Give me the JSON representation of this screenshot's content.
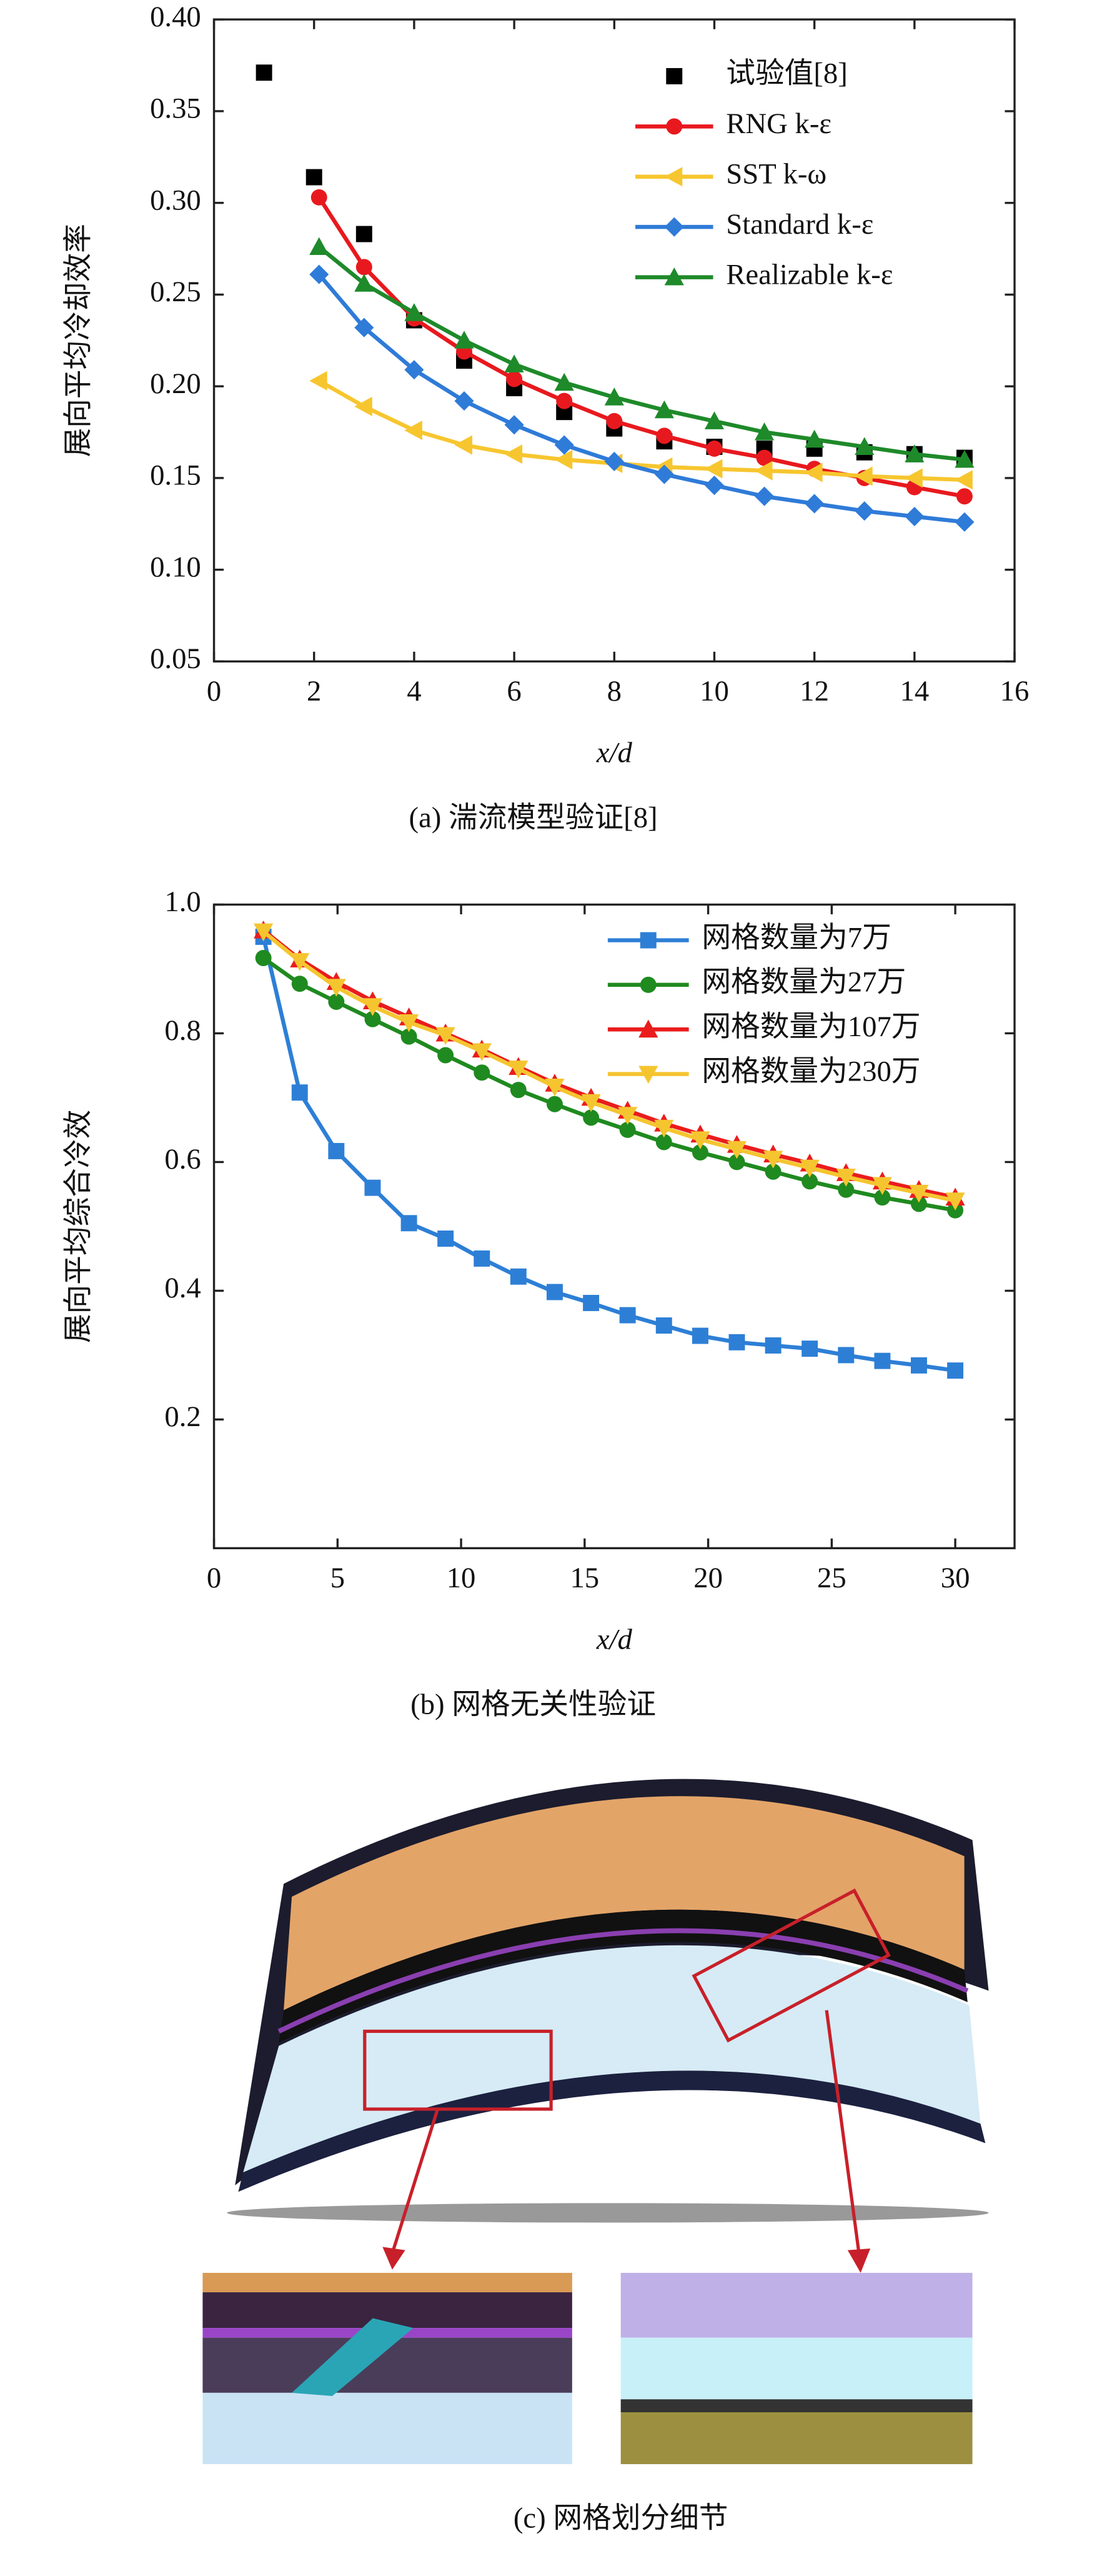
{
  "chart_data": [
    {
      "type": "line",
      "y_label": "展向平均冷却效率",
      "x_label": "x/d",
      "caption": "(a) 湍流模型验证[8]",
      "xlim": [
        0,
        16
      ],
      "xticks": [
        0,
        2,
        4,
        6,
        8,
        10,
        12,
        14,
        16
      ],
      "ylim": [
        0.05,
        0.4
      ],
      "yticks": [
        {
          "value": 0.05,
          "label": "0.05"
        },
        {
          "value": 0.1,
          "label": "0.10"
        },
        {
          "value": 0.15,
          "label": "0.15"
        },
        {
          "value": 0.2,
          "label": "0.20"
        },
        {
          "value": 0.25,
          "label": "0.25"
        },
        {
          "value": 0.3,
          "label": "0.30"
        },
        {
          "value": 0.35,
          "label": "0.35"
        },
        {
          "value": 0.4,
          "label": "0.40"
        }
      ],
      "legend": "upper right",
      "series": [
        {
          "name": "试验值[8]",
          "color": "#000000",
          "marker": "square",
          "line": false,
          "x": [
            1,
            2,
            3,
            4,
            5,
            6,
            7,
            8,
            9,
            10,
            11,
            12,
            13,
            14,
            15
          ],
          "values": [
            0.371,
            0.314,
            0.283,
            0.236,
            0.214,
            0.199,
            0.186,
            0.177,
            0.17,
            0.167,
            0.166,
            0.166,
            0.164,
            0.163,
            0.161
          ]
        },
        {
          "name": "RNG k-ε",
          "color": "#e8191e",
          "marker": "circle",
          "line": true,
          "x": [
            2.1,
            3,
            4,
            5,
            6,
            7,
            8,
            9,
            10,
            11,
            12,
            13,
            14,
            15
          ],
          "values": [
            0.303,
            0.265,
            0.237,
            0.219,
            0.204,
            0.192,
            0.181,
            0.173,
            0.166,
            0.161,
            0.155,
            0.15,
            0.145,
            0.14
          ]
        },
        {
          "name": "SST k-ω",
          "color": "#f7c62f",
          "marker": "triangle-left",
          "line": true,
          "x": [
            2.1,
            3,
            4,
            5,
            6,
            7,
            8,
            9,
            10,
            11,
            12,
            13,
            14,
            15
          ],
          "values": [
            0.203,
            0.189,
            0.176,
            0.168,
            0.163,
            0.16,
            0.158,
            0.156,
            0.155,
            0.154,
            0.153,
            0.151,
            0.15,
            0.149
          ]
        },
        {
          "name": "Standard k-ε",
          "color": "#2f7bd8",
          "marker": "diamond",
          "line": true,
          "x": [
            2.1,
            3,
            4,
            5,
            6,
            7,
            8,
            9,
            10,
            11,
            12,
            13,
            14,
            15
          ],
          "values": [
            0.261,
            0.232,
            0.209,
            0.192,
            0.179,
            0.168,
            0.159,
            0.152,
            0.146,
            0.14,
            0.136,
            0.132,
            0.129,
            0.126
          ]
        },
        {
          "name": "Realizable k-ε",
          "color": "#1e8a2a",
          "marker": "triangle-up",
          "line": true,
          "x": [
            2.1,
            3,
            4,
            5,
            6,
            7,
            8,
            9,
            10,
            11,
            12,
            13,
            14,
            15
          ],
          "values": [
            0.276,
            0.256,
            0.24,
            0.225,
            0.212,
            0.202,
            0.194,
            0.187,
            0.181,
            0.175,
            0.171,
            0.167,
            0.163,
            0.16
          ]
        }
      ]
    },
    {
      "type": "line",
      "y_label": "展向平均综合冷效",
      "x_label": "x/d",
      "caption": "(b) 网格无关性验证",
      "xlim": [
        0,
        32.4
      ],
      "xticks": [
        0,
        5,
        10,
        15,
        20,
        25,
        30
      ],
      "ylim": [
        0,
        1
      ],
      "yticks": [
        0.2,
        0.4,
        0.6,
        0.8,
        {
          "value": 1,
          "label": "1.0"
        }
      ],
      "legend": "upper right",
      "series": [
        {
          "name": "网格数量为7万",
          "color": "#2d7fd6",
          "marker": "square",
          "line": true,
          "x": [
            2,
            3.47,
            4.95,
            6.42,
            7.89,
            9.37,
            10.84,
            12.32,
            13.79,
            15.26,
            16.74,
            18.21,
            19.68,
            21.16,
            22.63,
            24.11,
            25.58,
            27.05,
            28.53,
            30
          ],
          "values": [
            0.95,
            0.708,
            0.617,
            0.56,
            0.505,
            0.481,
            0.45,
            0.422,
            0.398,
            0.381,
            0.362,
            0.346,
            0.33,
            0.32,
            0.315,
            0.31,
            0.3,
            0.291,
            0.284,
            0.276
          ]
        },
        {
          "name": "网格数量为27万",
          "color": "#1f8a1f",
          "marker": "circle",
          "line": true,
          "x": [
            2,
            3.47,
            4.95,
            6.42,
            7.89,
            9.37,
            10.84,
            12.32,
            13.79,
            15.26,
            16.74,
            18.21,
            19.68,
            21.16,
            22.63,
            24.11,
            25.58,
            27.05,
            28.53,
            30
          ],
          "values": [
            0.917,
            0.877,
            0.849,
            0.822,
            0.795,
            0.766,
            0.739,
            0.712,
            0.69,
            0.669,
            0.65,
            0.631,
            0.615,
            0.6,
            0.585,
            0.57,
            0.557,
            0.545,
            0.535,
            0.525
          ]
        },
        {
          "name": "网格数量为107万",
          "color": "#ea1c1c",
          "marker": "triangle-up",
          "line": true,
          "x": [
            2,
            3.47,
            4.95,
            6.42,
            7.89,
            9.37,
            10.84,
            12.32,
            13.79,
            15.26,
            16.74,
            18.21,
            19.68,
            21.16,
            22.63,
            24.11,
            25.58,
            27.05,
            28.53,
            30
          ],
          "values": [
            0.96,
            0.915,
            0.88,
            0.85,
            0.825,
            0.8,
            0.775,
            0.748,
            0.722,
            0.7,
            0.68,
            0.66,
            0.643,
            0.627,
            0.612,
            0.598,
            0.583,
            0.57,
            0.557,
            0.545
          ]
        },
        {
          "name": "网格数量为230万",
          "color": "#f5c530",
          "marker": "triangle-down",
          "line": true,
          "x": [
            2,
            3.47,
            4.95,
            6.42,
            7.89,
            9.37,
            10.84,
            12.32,
            13.79,
            15.26,
            16.74,
            18.21,
            19.68,
            21.16,
            22.63,
            24.11,
            25.58,
            27.05,
            28.53,
            30
          ],
          "values": [
            0.958,
            0.912,
            0.872,
            0.842,
            0.817,
            0.797,
            0.772,
            0.745,
            0.717,
            0.693,
            0.673,
            0.653,
            0.635,
            0.62,
            0.605,
            0.591,
            0.577,
            0.564,
            0.552,
            0.54
          ]
        }
      ]
    }
  ],
  "image_caption": "(c) 网格划分细节"
}
